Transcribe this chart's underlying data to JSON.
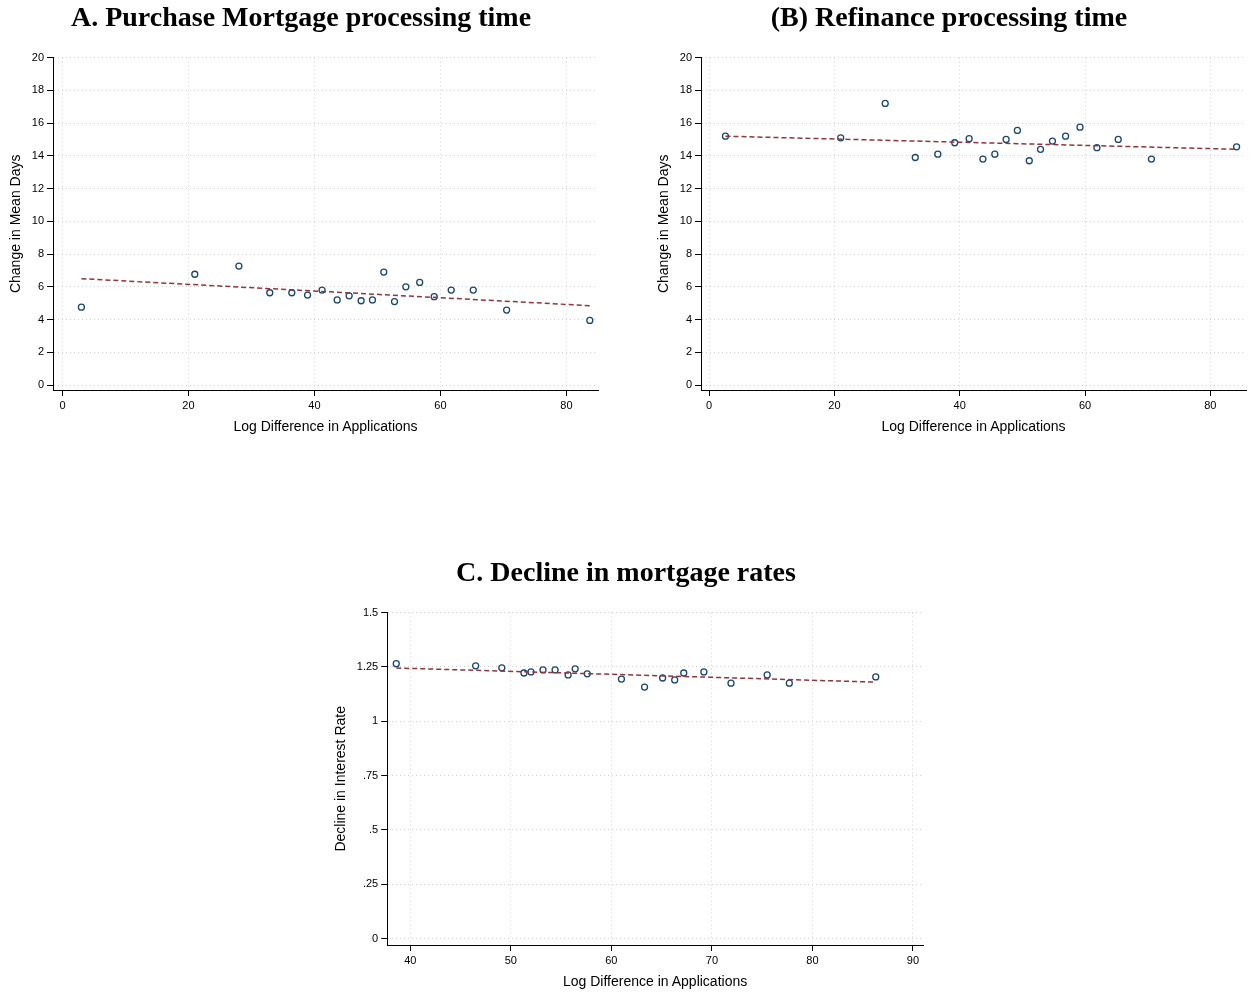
{
  "chart_data": [
    {
      "type": "scatter",
      "title": "A. Purchase Mortgage processing time",
      "xlabel": "Log Difference in Applications",
      "ylabel": "Change in Mean Days",
      "xlim": [
        -1.5,
        85
      ],
      "ylim": [
        -0.3,
        20
      ],
      "xticks": [
        0,
        20,
        40,
        60,
        80
      ],
      "yticks": [
        0,
        2,
        4,
        6,
        8,
        10,
        12,
        14,
        16,
        18,
        20
      ],
      "grid": true,
      "legend": false,
      "series": [
        {
          "type": "scatter",
          "color": "#1a476f",
          "marker": "circle",
          "x": [
            3.0,
            21.0,
            28.0,
            32.9,
            36.4,
            38.9,
            41.2,
            43.6,
            45.5,
            47.4,
            49.2,
            51.0,
            52.7,
            54.5,
            56.7,
            59.0,
            61.7,
            65.2,
            70.5,
            83.7
          ],
          "values": [
            4.76,
            6.77,
            7.27,
            5.64,
            5.64,
            5.5,
            5.8,
            5.2,
            5.45,
            5.15,
            5.2,
            6.9,
            5.1,
            6.0,
            6.27,
            5.4,
            5.8,
            5.8,
            4.58,
            3.95
          ]
        },
        {
          "type": "line",
          "color": "#90353b",
          "marker": "none",
          "line_style": "dashed",
          "x": [
            3.0,
            83.7
          ],
          "values": [
            6.5,
            4.85
          ]
        }
      ]
    },
    {
      "type": "scatter",
      "title": "(B) Refinance processing time",
      "xlabel": "Log Difference in Applications",
      "ylabel": "Change in Mean Days",
      "xlim": [
        -1.3,
        85.7
      ],
      "ylim": [
        -0.3,
        20
      ],
      "xticks": [
        0,
        20,
        40,
        60,
        80
      ],
      "yticks": [
        0,
        2,
        4,
        6,
        8,
        10,
        12,
        14,
        16,
        18,
        20
      ],
      "grid": true,
      "legend": false,
      "series": [
        {
          "type": "scatter",
          "color": "#1a476f",
          "marker": "circle",
          "x": [
            2.6,
            21.0,
            28.1,
            32.9,
            36.5,
            39.2,
            41.5,
            43.7,
            45.6,
            47.4,
            49.2,
            51.1,
            52.9,
            54.8,
            56.9,
            59.2,
            61.9,
            65.3,
            70.6,
            84.2
          ],
          "values": [
            15.2,
            15.1,
            17.2,
            13.9,
            14.1,
            14.8,
            15.05,
            13.8,
            14.1,
            15.0,
            15.55,
            13.7,
            14.4,
            14.9,
            15.2,
            15.75,
            14.5,
            15.0,
            13.8,
            14.55
          ]
        },
        {
          "type": "line",
          "color": "#90353b",
          "marker": "none",
          "line_style": "dashed",
          "x": [
            2.6,
            84.2
          ],
          "values": [
            15.2,
            14.4
          ]
        }
      ]
    },
    {
      "type": "scatter",
      "title": "C. Decline in mortgage rates",
      "xlabel": "Log Difference in Applications",
      "ylabel": "Decline in Interest Rate",
      "xlim": [
        37.7,
        91
      ],
      "ylim": [
        -0.03,
        1.5
      ],
      "xticks": [
        40,
        50,
        60,
        70,
        80,
        90
      ],
      "yticks": [
        0,
        {
          "value": 0.25,
          "label": ".25"
        },
        {
          "value": 0.5,
          "label": ".5"
        },
        {
          "value": 0.75,
          "label": ".75"
        },
        1,
        1.25,
        1.5
      ],
      "grid": true,
      "legend": false,
      "series": [
        {
          "type": "scatter",
          "color": "#1a476f",
          "marker": "circle",
          "x": [
            38.6,
            46.5,
            49.1,
            51.3,
            52.0,
            53.2,
            54.4,
            55.7,
            56.4,
            57.6,
            61.0,
            63.3,
            65.1,
            66.3,
            67.2,
            69.2,
            71.9,
            75.5,
            77.7,
            86.3
          ],
          "values": [
            1.265,
            1.255,
            1.246,
            1.222,
            1.227,
            1.236,
            1.236,
            1.213,
            1.241,
            1.218,
            1.194,
            1.157,
            1.199,
            1.19,
            1.222,
            1.227,
            1.175,
            1.213,
            1.175,
            1.204
          ]
        },
        {
          "type": "line",
          "color": "#90353b",
          "marker": "none",
          "line_style": "dashed",
          "x": [
            38.6,
            86.3
          ],
          "values": [
            1.245,
            1.18
          ]
        }
      ]
    }
  ]
}
